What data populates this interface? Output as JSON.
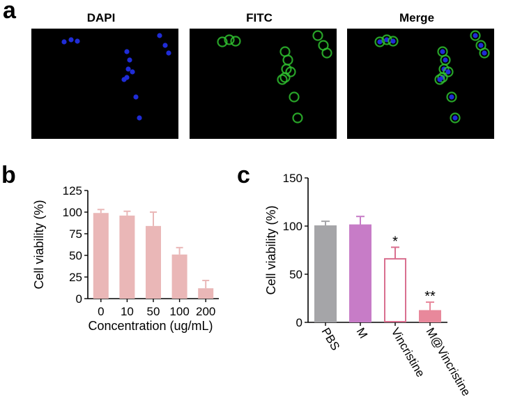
{
  "panel_a": {
    "letter": "a",
    "labels": [
      "DAPI",
      "FITC",
      "Merge"
    ]
  },
  "panel_b": {
    "letter": "b"
  },
  "panel_c": {
    "letter": "c"
  },
  "colors": {
    "bar_b": "#eab7b7",
    "pbs": "#a5a5a8",
    "m": "#c77cc7",
    "vincristine_outline": "#d96f8f",
    "m_vincristine": "#e8889b",
    "dapi": "#1f2cd6",
    "fitc": "#2fbf2f"
  },
  "chart_data": [
    {
      "type": "bar",
      "categories": [
        "0",
        "10",
        "50",
        "100",
        "200"
      ],
      "values": [
        99,
        96,
        84,
        51,
        12
      ],
      "errors": [
        4,
        5,
        16,
        8,
        9
      ],
      "title": "",
      "xlabel": "Concentration (ug/mL)",
      "ylabel": "Cell viability (%)",
      "ylim": [
        0,
        125
      ],
      "yticks": [
        "0",
        "25",
        "50",
        "75",
        "100",
        "125"
      ]
    },
    {
      "type": "bar",
      "categories": [
        "PBS",
        "M",
        "Vincristine",
        "M@Vincristine"
      ],
      "values": [
        100,
        101,
        66,
        12
      ],
      "errors": [
        5,
        9,
        12,
        9
      ],
      "significance": [
        "",
        "",
        "*",
        "**"
      ],
      "title": "",
      "xlabel": "",
      "ylabel": "Cell viability (%)",
      "ylim": [
        0,
        150
      ],
      "yticks": [
        "0",
        "50",
        "100",
        "150"
      ]
    }
  ]
}
